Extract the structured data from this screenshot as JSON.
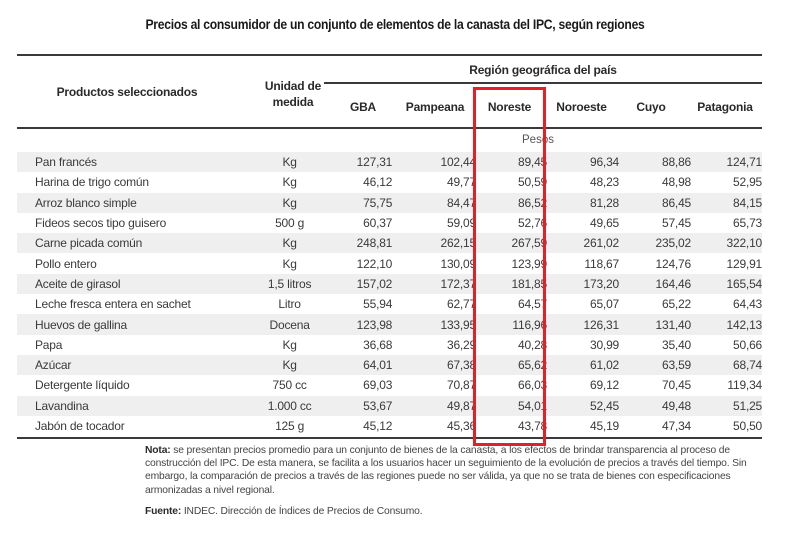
{
  "title": "Precios al consumidor de un conjunto de elementos de la canasta del IPC, según regiones",
  "headers": {
    "product": "Productos seleccionados",
    "unit_line1": "Unidad de",
    "unit_line2": "medida",
    "region_group": "Región geográfica del país",
    "regions": [
      "GBA",
      "Pampeana",
      "Noreste",
      "Noroeste",
      "Cuyo",
      "Patagonia"
    ],
    "currency": "Pesos"
  },
  "highlight": {
    "column": "Noreste",
    "color": "#e0202a"
  },
  "rows": [
    {
      "product": "Pan francés",
      "unit": "Kg",
      "values": [
        "127,31",
        "102,44",
        "89,45",
        "96,34",
        "88,86",
        "124,71"
      ]
    },
    {
      "product": "Harina de trigo común",
      "unit": "Kg",
      "values": [
        "46,12",
        "49,77",
        "50,59",
        "48,23",
        "48,98",
        "52,95"
      ]
    },
    {
      "product": "Arroz blanco simple",
      "unit": "Kg",
      "values": [
        "75,75",
        "84,47",
        "86,52",
        "81,28",
        "86,45",
        "84,15"
      ]
    },
    {
      "product": "Fideos secos tipo guisero",
      "unit": "500 g",
      "values": [
        "60,37",
        "59,09",
        "52,76",
        "49,65",
        "57,45",
        "65,73"
      ]
    },
    {
      "product": "Carne picada común",
      "unit": "Kg",
      "values": [
        "248,81",
        "262,15",
        "267,59",
        "261,02",
        "235,02",
        "322,10"
      ]
    },
    {
      "product": "Pollo entero",
      "unit": "Kg",
      "values": [
        "122,10",
        "130,09",
        "123,99",
        "118,67",
        "124,76",
        "129,91"
      ]
    },
    {
      "product": "Aceite de girasol",
      "unit": "1,5 litros",
      "values": [
        "157,02",
        "172,37",
        "181,85",
        "173,20",
        "164,46",
        "165,54"
      ]
    },
    {
      "product": "Leche fresca entera en sachet",
      "unit": "Litro",
      "values": [
        "55,94",
        "62,77",
        "64,57",
        "65,07",
        "65,22",
        "64,43"
      ]
    },
    {
      "product": "Huevos de gallina",
      "unit": "Docena",
      "values": [
        "123,98",
        "133,95",
        "116,96",
        "126,31",
        "131,40",
        "142,13"
      ]
    },
    {
      "product": "Papa",
      "unit": "Kg",
      "values": [
        "36,68",
        "36,29",
        "40,28",
        "30,99",
        "35,40",
        "50,66"
      ]
    },
    {
      "product": "Azúcar",
      "unit": "Kg",
      "values": [
        "64,01",
        "67,38",
        "65,62",
        "61,02",
        "63,59",
        "68,74"
      ]
    },
    {
      "product": "Detergente líquido",
      "unit": "750 cc",
      "values": [
        "69,03",
        "70,87",
        "66,03",
        "69,12",
        "70,45",
        "119,34"
      ]
    },
    {
      "product": "Lavandina",
      "unit": "1.000 cc",
      "values": [
        "53,67",
        "49,87",
        "54,01",
        "52,45",
        "49,48",
        "51,25"
      ]
    },
    {
      "product": "Jabón de tocador",
      "unit": "125 g",
      "values": [
        "45,12",
        "45,36",
        "43,78",
        "45,19",
        "47,34",
        "50,50"
      ]
    }
  ],
  "note": {
    "label": "Nota:",
    "text": " se presentan precios promedio para un conjunto de bienes de la canasta, a los efectos de brindar transparencia al proceso de construcción del IPC. De esta manera, se facilita a los usuarios hacer un seguimiento de la evolución de precios a través del tiempo. Sin embargo, la comparación de precios a través de las regiones puede no ser válida, ya que no se trata de bienes con especificaciones armonizadas a nivel regional."
  },
  "source": {
    "label": "Fuente:",
    "text": " INDEC. Dirección de Índices de Precios de Consumo."
  }
}
